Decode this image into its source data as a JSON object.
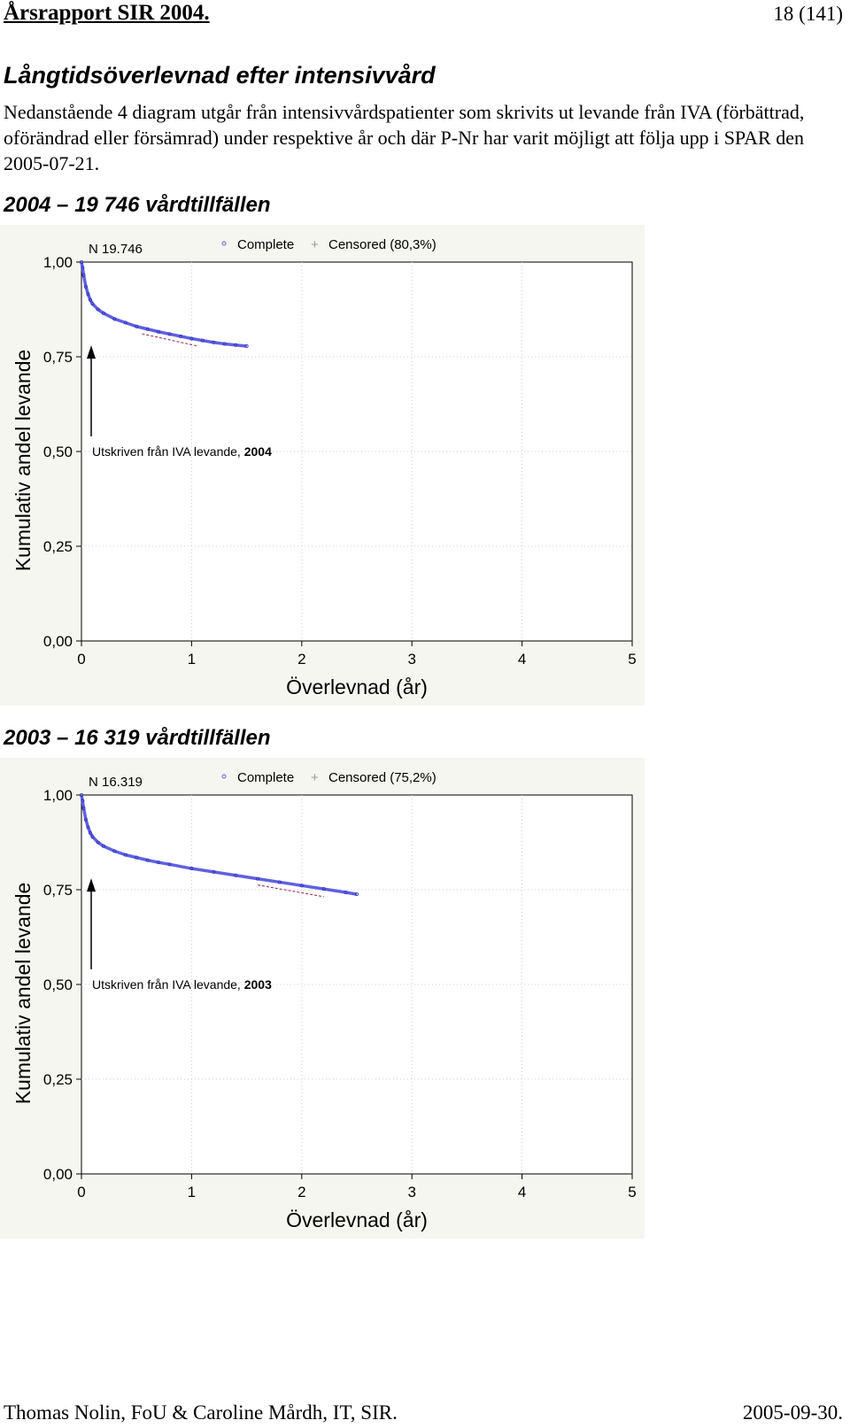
{
  "header": {
    "title": "Årsrapport SIR 2004.",
    "page": "18 (141)"
  },
  "section": {
    "heading": "Långtidsöverlevnad efter intensivvård",
    "intro": "Nedanstående 4 diagram utgår från intensivvårdspatienter som skrivits ut levande från IVA (förbättrad, oförändrad eller försämrad) under respektive år och där P-Nr har varit möjligt att följa upp i SPAR den 2005-07-21."
  },
  "charts": [
    {
      "heading": "2004 – 19 746 vårdtillfällen"
    },
    {
      "heading": "2003 – 16 319 vårdtillfällen"
    }
  ],
  "chart_data": [
    {
      "type": "line",
      "xlabel": "Överlevnad (år)",
      "ylabel": "Kumulativ andel levande",
      "xlim": [
        0,
        5
      ],
      "ylim": [
        0,
        1
      ],
      "xticks": [
        "0",
        "1",
        "2",
        "3",
        "4",
        "5"
      ],
      "yticks": [
        "0,00",
        "0,25",
        "0,50",
        "0,75",
        "1,00"
      ],
      "n_label": "N  19.746",
      "legend": [
        {
          "marker": "◦",
          "label": "Complete"
        },
        {
          "marker": "+",
          "label": "Censored (80,3%)"
        }
      ],
      "annotation_prefix": "Utskriven från IVA levande, ",
      "annotation_year": "2004",
      "series": [
        {
          "x": [
            0,
            0.01,
            0.02,
            0.04,
            0.06,
            0.08,
            0.1,
            0.15,
            0.2,
            0.3,
            0.4,
            0.5,
            0.6,
            0.7,
            0.8,
            0.9,
            1.0,
            1.1,
            1.2,
            1.3,
            1.4,
            1.5
          ],
          "y": [
            1.0,
            0.985,
            0.965,
            0.935,
            0.915,
            0.9,
            0.89,
            0.875,
            0.865,
            0.85,
            0.84,
            0.83,
            0.823,
            0.816,
            0.81,
            0.804,
            0.798,
            0.793,
            0.788,
            0.784,
            0.781,
            0.778
          ]
        },
        {
          "x": [
            0.55,
            1.05
          ],
          "y": [
            0.82,
            0.788
          ]
        }
      ],
      "colors": {
        "series": "#6060e0",
        "censored": "#a02040",
        "annotation": "#000000"
      }
    },
    {
      "type": "line",
      "xlabel": "Överlevnad (år)",
      "ylabel": "Kumulativ andel levande",
      "xlim": [
        0,
        5
      ],
      "ylim": [
        0,
        1
      ],
      "xticks": [
        "0",
        "1",
        "2",
        "3",
        "4",
        "5"
      ],
      "yticks": [
        "0,00",
        "0,25",
        "0,50",
        "0,75",
        "1,00"
      ],
      "n_label": "N  16.319",
      "legend": [
        {
          "marker": "◦",
          "label": "Complete"
        },
        {
          "marker": "+",
          "label": "Censored (75,2%)"
        }
      ],
      "annotation_prefix": "Utskriven från IVA levande, ",
      "annotation_year": "2003",
      "series": [
        {
          "x": [
            0,
            0.01,
            0.02,
            0.04,
            0.06,
            0.08,
            0.1,
            0.15,
            0.2,
            0.3,
            0.4,
            0.5,
            0.6,
            0.7,
            0.8,
            1.0,
            1.2,
            1.4,
            1.6,
            1.8,
            2.0,
            2.2,
            2.4,
            2.5
          ],
          "y": [
            1.0,
            0.985,
            0.965,
            0.935,
            0.915,
            0.9,
            0.89,
            0.875,
            0.865,
            0.852,
            0.842,
            0.835,
            0.828,
            0.822,
            0.817,
            0.806,
            0.797,
            0.788,
            0.779,
            0.77,
            0.761,
            0.752,
            0.743,
            0.738
          ]
        },
        {
          "x": [
            1.6,
            2.2
          ],
          "y": [
            0.772,
            0.741
          ]
        }
      ],
      "colors": {
        "series": "#6060e0",
        "censored": "#a02040",
        "annotation": "#000000"
      }
    }
  ],
  "footer": {
    "left": "Thomas Nolin, FoU & Caroline Mårdh, IT, SIR.",
    "right": "2005-09-30."
  }
}
